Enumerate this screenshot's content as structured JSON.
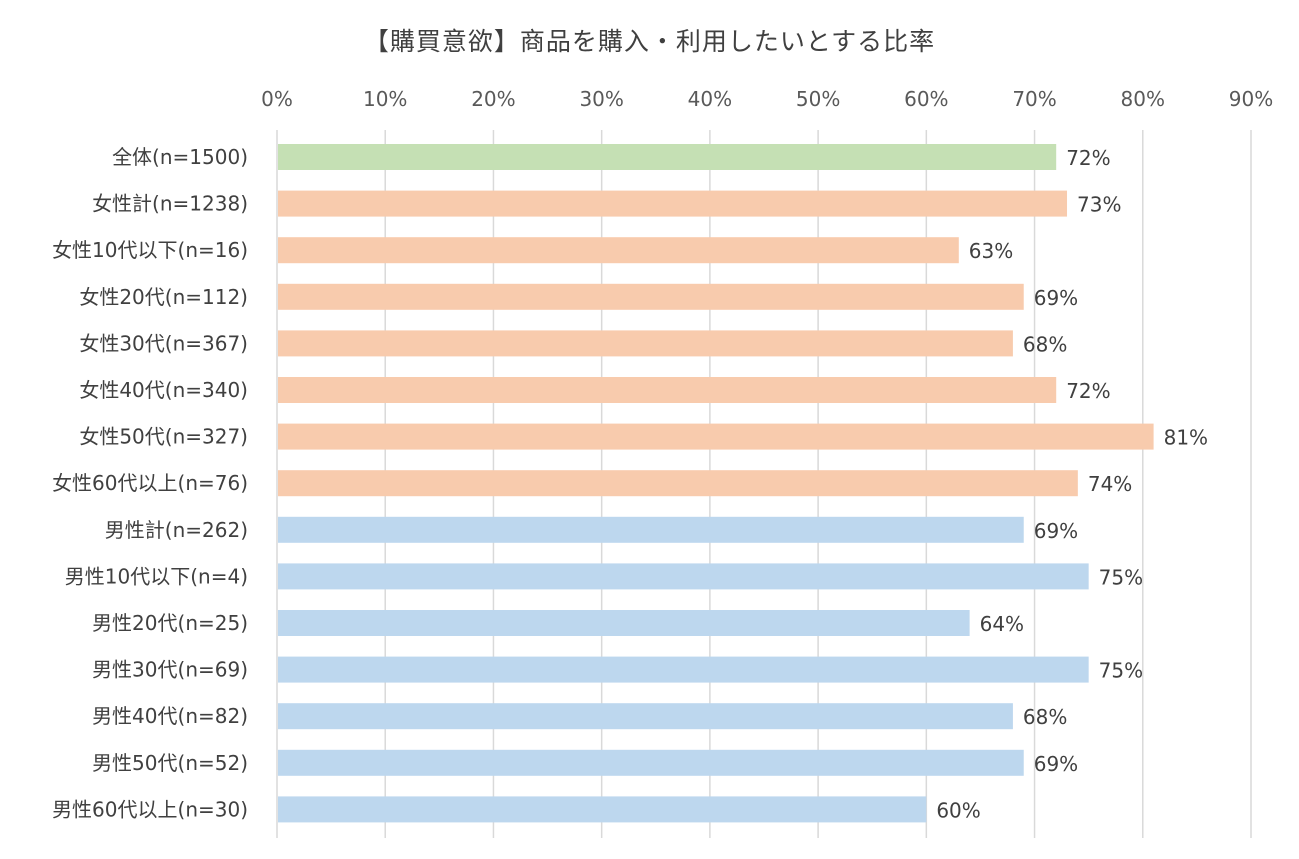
{
  "chart_data": {
    "type": "bar",
    "orientation": "horizontal",
    "title": "【購買意欲】商品を購入・利用したいとする比率",
    "xlim": [
      0,
      90
    ],
    "x_ticks": [
      "0%",
      "10%",
      "20%",
      "30%",
      "40%",
      "50%",
      "60%",
      "70%",
      "80%",
      "90%"
    ],
    "x_tick_values": [
      0,
      10,
      20,
      30,
      40,
      50,
      60,
      70,
      80,
      90
    ],
    "grid": true,
    "categories": [
      "全体(n=1500)",
      "女性計(n=1238)",
      "女性10代以下(n=16)",
      "女性20代(n=112)",
      "女性30代(n=367)",
      "女性40代(n=340)",
      "女性50代(n=327)",
      "女性60代以上(n=76)",
      "男性計(n=262)",
      "男性10代以下(n=4)",
      "男性20代(n=25)",
      "男性30代(n=69)",
      "男性40代(n=82)",
      "男性50代(n=52)",
      "男性60代以上(n=30)"
    ],
    "values": [
      72,
      73,
      63,
      69,
      68,
      72,
      81,
      74,
      69,
      75,
      64,
      75,
      68,
      69,
      60
    ],
    "value_labels": [
      "72%",
      "73%",
      "63%",
      "69%",
      "68%",
      "72%",
      "81%",
      "74%",
      "69%",
      "75%",
      "64%",
      "75%",
      "68%",
      "69%",
      "60%"
    ],
    "bar_groups": [
      "total",
      "female",
      "female",
      "female",
      "female",
      "female",
      "female",
      "female",
      "male",
      "male",
      "male",
      "male",
      "male",
      "male",
      "male"
    ],
    "colors": {
      "total": "#c5e0b4",
      "female": "#f8cbad",
      "male": "#bdd7ee",
      "grid": "#d9d9d9"
    }
  }
}
